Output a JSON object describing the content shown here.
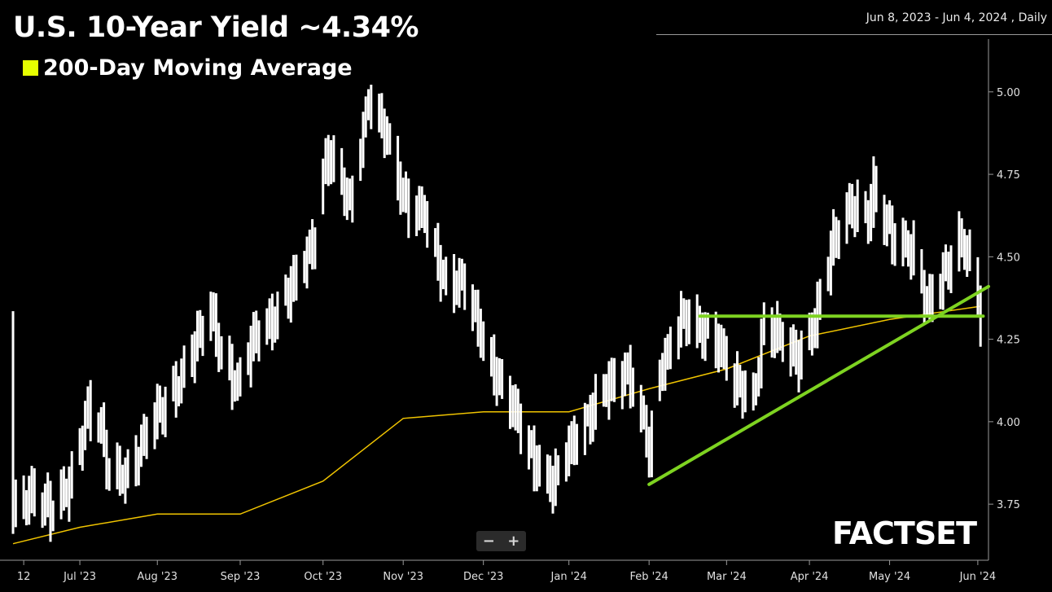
{
  "header": {
    "title": "U.S. 10-Year Yield ~4.34%",
    "legend_label": "200-Day Moving Average",
    "legend_color": "#e6ff00",
    "date_range": "Jun 8, 2023 - Jun 4, 2024 , Daily"
  },
  "zoom": {
    "minus": "−",
    "plus": "+"
  },
  "brand": {
    "logo": "FACTSET"
  },
  "chart_data": {
    "type": "ohlc",
    "ylim": [
      3.58,
      5.16
    ],
    "yticks": [
      3.75,
      4.0,
      4.25,
      4.5,
      4.75,
      5.0
    ],
    "ytick_labels": [
      "3.75",
      "4.00",
      "4.25",
      "4.50",
      "4.75",
      "5.00"
    ],
    "xticks": [
      {
        "label": "12",
        "x": "2023-06-12"
      },
      {
        "label": "Jul '23",
        "x": "2023-07-03"
      },
      {
        "label": "Aug '23",
        "x": "2023-08-01"
      },
      {
        "label": "Sep '23",
        "x": "2023-09-01"
      },
      {
        "label": "Oct '23",
        "x": "2023-10-02"
      },
      {
        "label": "Nov '23",
        "x": "2023-11-01"
      },
      {
        "label": "Dec '23",
        "x": "2023-12-01"
      },
      {
        "label": "Jan '24",
        "x": "2024-01-02"
      },
      {
        "label": "Feb '24",
        "x": "2024-02-01"
      },
      {
        "label": "Mar '24",
        "x": "2024-03-01"
      },
      {
        "label": "Apr '24",
        "x": "2024-04-01"
      },
      {
        "label": "May '24",
        "x": "2024-05-01"
      },
      {
        "label": "Jun '24",
        "x": "2024-06-03"
      }
    ],
    "series": [
      {
        "type": "ohlc",
        "color": "#ffffff",
        "x": [
          "2023-06-08",
          "2023-06-16",
          "2023-06-23",
          "2023-06-30",
          "2023-07-06",
          "2023-07-10",
          "2023-07-14",
          "2023-07-21",
          "2023-07-28",
          "2023-08-04",
          "2023-08-11",
          "2023-08-21",
          "2023-08-24",
          "2023-08-31",
          "2023-09-07",
          "2023-09-15",
          "2023-09-22",
          "2023-09-29",
          "2023-10-03",
          "2023-10-06",
          "2023-10-12",
          "2023-10-19",
          "2023-10-23",
          "2023-10-27",
          "2023-11-02",
          "2023-11-09",
          "2023-11-16",
          "2023-11-24",
          "2023-11-30",
          "2023-12-07",
          "2023-12-13",
          "2023-12-20",
          "2023-12-27",
          "2024-01-03",
          "2024-01-10",
          "2024-01-17",
          "2024-01-24",
          "2024-01-31",
          "2024-02-01",
          "2024-02-05",
          "2024-02-13",
          "2024-02-20",
          "2024-02-26",
          "2024-03-04",
          "2024-03-11",
          "2024-03-15",
          "2024-03-22",
          "2024-03-28",
          "2024-04-04",
          "2024-04-10",
          "2024-04-16",
          "2024-04-23",
          "2024-04-25",
          "2024-05-02",
          "2024-05-10",
          "2024-05-15",
          "2024-05-20",
          "2024-05-28",
          "2024-05-31",
          "2024-06-04"
        ],
        "values": [
          3.72,
          3.78,
          3.74,
          3.81,
          4.05,
          4.01,
          3.83,
          3.84,
          3.97,
          4.05,
          4.16,
          4.33,
          4.24,
          4.1,
          4.27,
          4.33,
          4.43,
          4.57,
          4.8,
          4.78,
          4.66,
          4.98,
          4.91,
          4.84,
          4.66,
          4.62,
          4.44,
          4.41,
          4.27,
          4.12,
          4.02,
          3.89,
          3.8,
          3.94,
          4.02,
          4.11,
          4.16,
          3.96,
          3.87,
          4.16,
          4.31,
          4.28,
          4.26,
          4.11,
          4.08,
          4.3,
          4.24,
          4.2,
          4.32,
          4.55,
          4.66,
          4.61,
          4.7,
          4.57,
          4.5,
          4.36,
          4.43,
          4.54,
          4.5,
          4.34
        ]
      },
      {
        "name": "200-Day Moving Average",
        "type": "line",
        "color": "#f0c400",
        "x": [
          "2023-06-08",
          "2023-07-03",
          "2023-08-01",
          "2023-09-01",
          "2023-10-02",
          "2023-11-01",
          "2023-12-01",
          "2024-01-02",
          "2024-02-01",
          "2024-03-01",
          "2024-04-01",
          "2024-05-01",
          "2024-06-04"
        ],
        "values": [
          3.63,
          3.68,
          3.72,
          3.72,
          3.82,
          4.01,
          4.03,
          4.03,
          4.1,
          4.16,
          4.26,
          4.31,
          4.35
        ]
      }
    ],
    "annotations": [
      {
        "type": "support-line",
        "color": "#7ed321",
        "x": [
          "2024-02-20",
          "2024-06-05"
        ],
        "values": [
          4.32,
          4.32
        ]
      },
      {
        "type": "trend-line",
        "color": "#7ed321",
        "x": [
          "2024-02-01",
          "2024-06-07"
        ],
        "values": [
          3.81,
          4.41
        ]
      }
    ]
  }
}
